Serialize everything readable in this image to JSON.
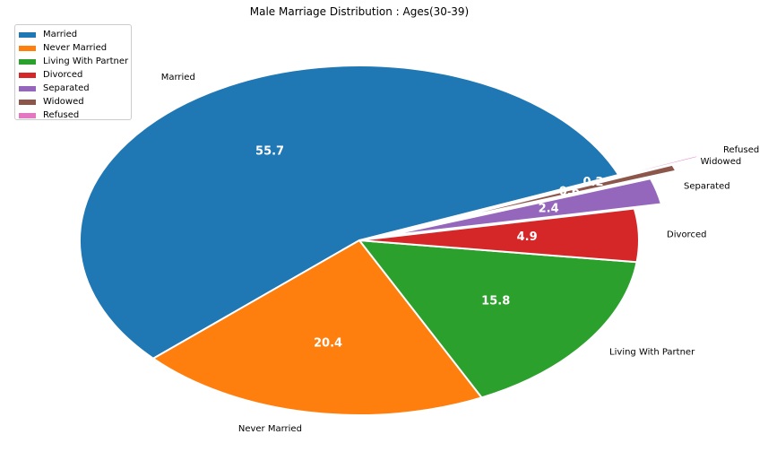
{
  "chart_data": {
    "type": "pie",
    "title": "Male Marriage Distribution : Ages(30-39)",
    "categories": [
      "Married",
      "Never Married",
      "Living With Partner",
      "Divorced",
      "Separated",
      "Widowed",
      "Refused"
    ],
    "values": [
      55.7,
      20.4,
      15.8,
      4.9,
      2.4,
      0.6,
      0.2
    ],
    "value_labels": [
      "55.7",
      "20.4",
      "15.8",
      "4.9",
      "2.4",
      "0.6",
      "0.2"
    ],
    "colors": [
      "#1f77b4",
      "#ff7f0e",
      "#2ca02c",
      "#d62728",
      "#9467bd",
      "#8c564b",
      "#e377c2"
    ],
    "start_angle": 22,
    "explode": [
      0,
      0,
      0,
      0,
      0.1,
      0.2,
      0.3
    ],
    "legend_position": "upper-left"
  }
}
